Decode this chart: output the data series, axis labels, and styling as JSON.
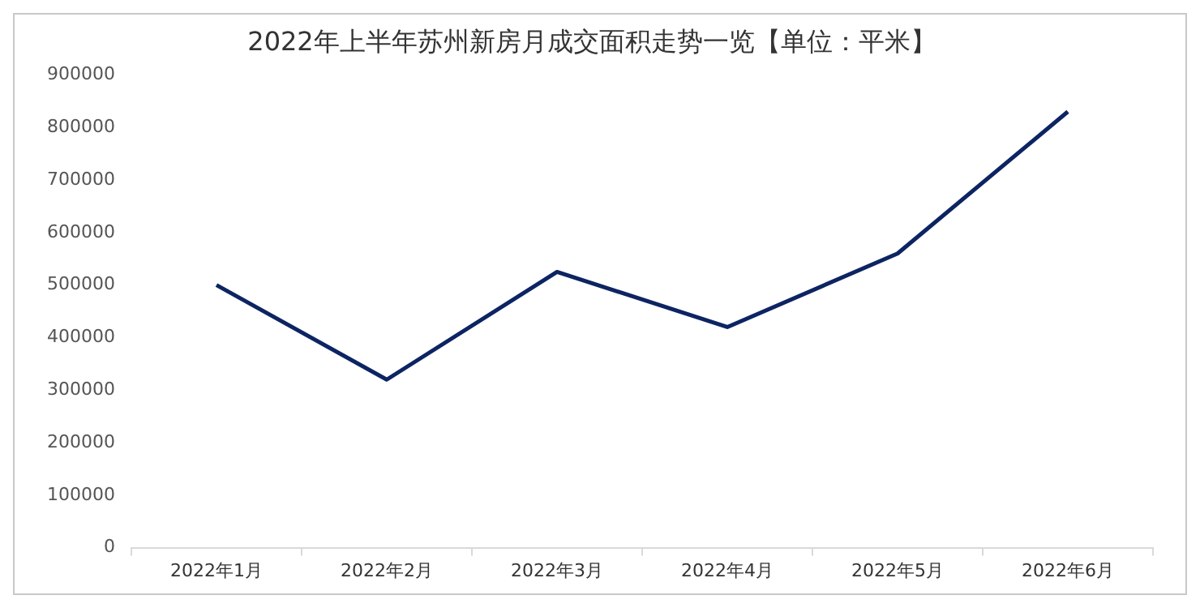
{
  "chart_data": {
    "type": "line",
    "title": "2022年上半年苏州新房月成交面积走势一览【单位：平米】",
    "categories": [
      "2022年1月",
      "2022年2月",
      "2022年3月",
      "2022年4月",
      "2022年5月",
      "2022年6月"
    ],
    "series": [
      {
        "color": "#0d2463",
        "values": [
          500000,
          320000,
          525000,
          420000,
          560000,
          830000
        ]
      }
    ],
    "ylim": [
      0,
      900000
    ],
    "yticks": [
      0,
      100000,
      200000,
      300000,
      400000,
      500000,
      600000,
      700000,
      800000,
      900000
    ],
    "grid": false,
    "legend": false,
    "marker": "none",
    "line_style": "solid"
  }
}
